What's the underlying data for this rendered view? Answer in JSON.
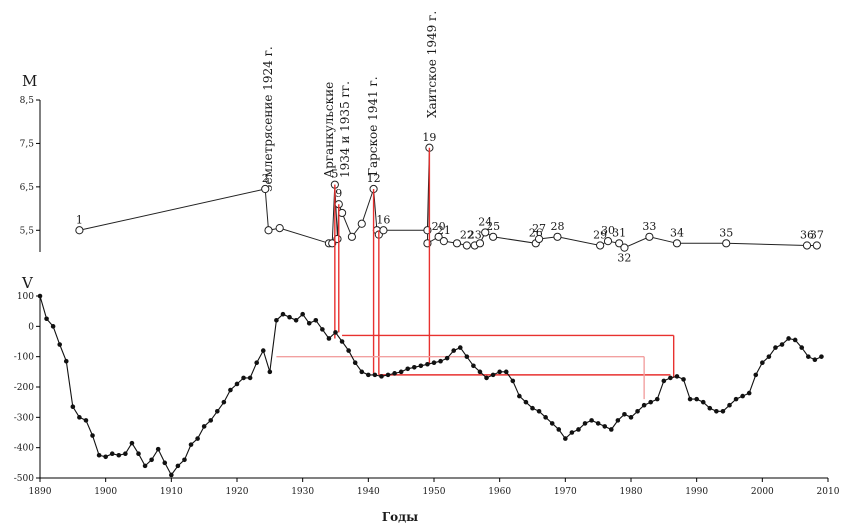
{
  "chart_data": [
    {
      "type": "line",
      "axis_title": "M",
      "ylim": [
        5.0,
        8.5
      ],
      "y_ticks": [
        "5,5",
        "6,5",
        "7,5",
        "8,5"
      ],
      "y_tick_values": [
        5.5,
        6.5,
        7.5,
        8.5
      ],
      "series": [
        {
          "marker": "open-circle",
          "points": [
            {
              "x": 1896,
              "y": 5.5,
              "label": "1"
            },
            {
              "x": 1924.3,
              "y": 6.45,
              "label": "2"
            },
            {
              "x": 1924.8,
              "y": 5.5
            },
            {
              "x": 1926.5,
              "y": 5.55
            },
            {
              "x": 1934.0,
              "y": 5.2
            },
            {
              "x": 1934.5,
              "y": 5.2
            },
            {
              "x": 1934.9,
              "y": 6.55,
              "label": "5"
            },
            {
              "x": 1935.3,
              "y": 5.3
            },
            {
              "x": 1935.5,
              "y": 6.1,
              "label": "9"
            },
            {
              "x": 1936.0,
              "y": 5.9
            },
            {
              "x": 1937.5,
              "y": 5.35
            },
            {
              "x": 1939.0,
              "y": 5.65
            },
            {
              "x": 1940.8,
              "y": 6.45,
              "label": "12"
            },
            {
              "x": 1941.3,
              "y": 5.5
            },
            {
              "x": 1941.6,
              "y": 5.4
            },
            {
              "x": 1942.3,
              "y": 5.5,
              "label": "16"
            },
            {
              "x": 1949.0,
              "y": 5.5
            },
            {
              "x": 1949.3,
              "y": 7.4,
              "label": "19"
            },
            {
              "x": 1949.0,
              "y": 5.2
            },
            {
              "x": 1950.7,
              "y": 5.35,
              "label": "20"
            },
            {
              "x": 1951.5,
              "y": 5.25,
              "label": "21"
            },
            {
              "x": 1953.5,
              "y": 5.2
            },
            {
              "x": 1955.0,
              "y": 5.15,
              "label": "22"
            },
            {
              "x": 1956.2,
              "y": 5.15,
              "label": "23"
            },
            {
              "x": 1957.0,
              "y": 5.2
            },
            {
              "x": 1957.8,
              "y": 5.45,
              "label": "24"
            },
            {
              "x": 1959.0,
              "y": 5.35,
              "label": "25"
            },
            {
              "x": 1965.5,
              "y": 5.2,
              "label": "26"
            },
            {
              "x": 1966.0,
              "y": 5.3,
              "label": "27"
            },
            {
              "x": 1968.8,
              "y": 5.35,
              "label": "28"
            },
            {
              "x": 1975.3,
              "y": 5.15,
              "label": "29"
            },
            {
              "x": 1976.5,
              "y": 5.25,
              "label": "30"
            },
            {
              "x": 1978.2,
              "y": 5.2,
              "label": "31"
            },
            {
              "x": 1979.0,
              "y": 5.1,
              "label": "32"
            },
            {
              "x": 1982.8,
              "y": 5.35,
              "label": "33"
            },
            {
              "x": 1987.0,
              "y": 5.2,
              "label": "34"
            },
            {
              "x": 1994.5,
              "y": 5.2,
              "label": "35"
            },
            {
              "x": 2006.8,
              "y": 5.15,
              "label": "36"
            },
            {
              "x": 2008.3,
              "y": 5.15,
              "label": "37"
            }
          ]
        }
      ],
      "annotations": [
        {
          "text": "Землетрясение 1924 г.",
          "x": 1924.3
        },
        {
          "text": "Арганкульские",
          "x": 1935.2
        },
        {
          "text": "1934 и 1935 гг.",
          "x": 1935.2
        },
        {
          "text": "Гарское 1941 г.",
          "x": 1940.8
        },
        {
          "text": "Хаитское 1949 г.",
          "x": 1949.3
        }
      ]
    },
    {
      "type": "line",
      "axis_title": "V",
      "xlabel": "Годы",
      "xlim": [
        1890,
        2010
      ],
      "ylim": [
        -500,
        100
      ],
      "x_ticks": [
        "1890",
        "1900",
        "1910",
        "1920",
        "1930",
        "1940",
        "1950",
        "1960",
        "1970",
        "1980",
        "1990",
        "2000",
        "2010"
      ],
      "y_ticks": [
        "100",
        "0",
        "-100",
        "-200",
        "-300",
        "-400",
        "-500"
      ],
      "series": [
        {
          "marker": "filled-circle",
          "x": [
            1890,
            1891,
            1892,
            1893,
            1894,
            1895,
            1896,
            1897,
            1898,
            1899,
            1900,
            1901,
            1902,
            1903,
            1904,
            1905,
            1906,
            1907,
            1908,
            1909,
            1910,
            1911,
            1912,
            1913,
            1914,
            1915,
            1916,
            1917,
            1918,
            1919,
            1920,
            1921,
            1922,
            1923,
            1924,
            1925,
            1926,
            1927,
            1928,
            1929,
            1930,
            1931,
            1932,
            1933,
            1934,
            1935,
            1936,
            1937,
            1938,
            1939,
            1940,
            1941,
            1942,
            1943,
            1944,
            1945,
            1946,
            1947,
            1948,
            1949,
            1950,
            1951,
            1952,
            1953,
            1954,
            1955,
            1956,
            1957,
            1958,
            1959,
            1960,
            1961,
            1962,
            1963,
            1964,
            1965,
            1966,
            1967,
            1968,
            1969,
            1970,
            1971,
            1972,
            1973,
            1974,
            1975,
            1976,
            1977,
            1978,
            1979,
            1980,
            1981,
            1982,
            1983,
            1984,
            1985,
            1986,
            1987,
            1988,
            1989,
            1990,
            1991,
            1992,
            1993,
            1994,
            1995,
            1996,
            1997,
            1998,
            1999,
            2000,
            2001,
            2002,
            2003,
            2004,
            2005,
            2006,
            2007,
            2008,
            2009
          ],
          "y": [
            100,
            25,
            0,
            -60,
            -115,
            -265,
            -300,
            -310,
            -360,
            -425,
            -430,
            -420,
            -425,
            -420,
            -385,
            -420,
            -460,
            -440,
            -405,
            -450,
            -490,
            -460,
            -440,
            -390,
            -370,
            -330,
            -310,
            -280,
            -250,
            -210,
            -190,
            -170,
            -170,
            -120,
            -80,
            -150,
            20,
            40,
            30,
            20,
            40,
            10,
            20,
            -10,
            -40,
            -20,
            -50,
            -80,
            -120,
            -150,
            -160,
            -160,
            -165,
            -160,
            -155,
            -150,
            -140,
            -135,
            -130,
            -125,
            -120,
            -115,
            -105,
            -80,
            -70,
            -100,
            -130,
            -150,
            -170,
            -160,
            -150,
            -150,
            -180,
            -230,
            -250,
            -270,
            -280,
            -300,
            -320,
            -340,
            -370,
            -350,
            -340,
            -320,
            -310,
            -320,
            -330,
            -340,
            -310,
            -290,
            -300,
            -280,
            -260,
            -250,
            -240,
            -180,
            -170,
            -165,
            -175,
            -240,
            -240,
            -250,
            -270,
            -280,
            -280,
            -260,
            -240,
            -230,
            -220,
            -160,
            -120,
            -100,
            -70,
            -60,
            -40,
            -45,
            -70,
            -100,
            -110,
            -100
          ]
        }
      ]
    }
  ]
}
